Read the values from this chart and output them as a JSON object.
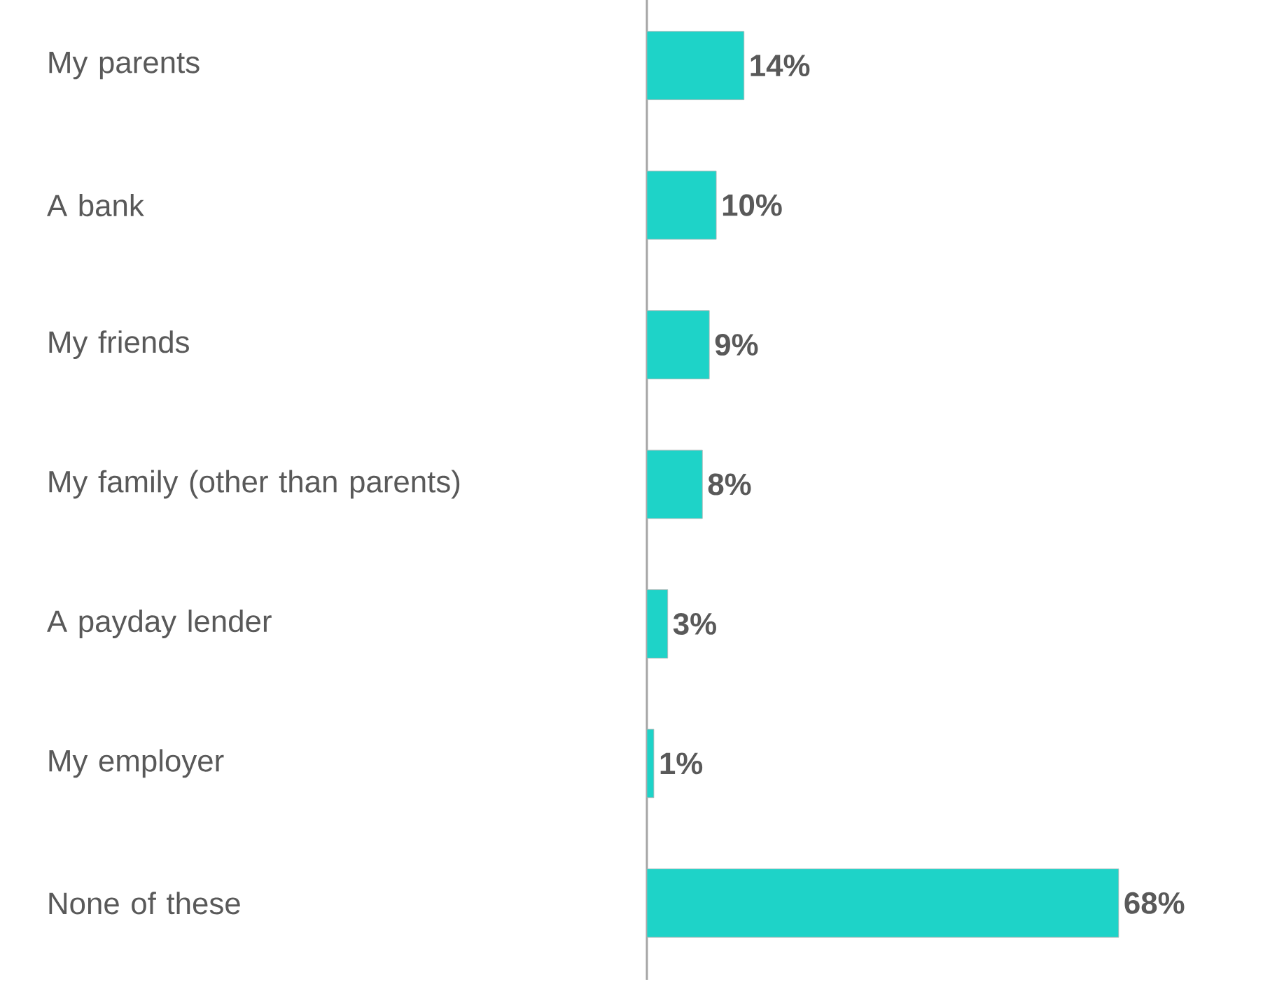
{
  "chart_data": {
    "type": "bar",
    "orientation": "horizontal",
    "categories": [
      "My parents",
      "A bank",
      "My friends",
      "My family (other than parents)",
      "A payday lender",
      "My employer",
      "None of these"
    ],
    "values": [
      14,
      10,
      9,
      8,
      3,
      1,
      68
    ],
    "value_labels": [
      "14%",
      "10%",
      "9%",
      "8%",
      "3%",
      "1%",
      "68%"
    ],
    "color": "#1ed3c8"
  }
}
